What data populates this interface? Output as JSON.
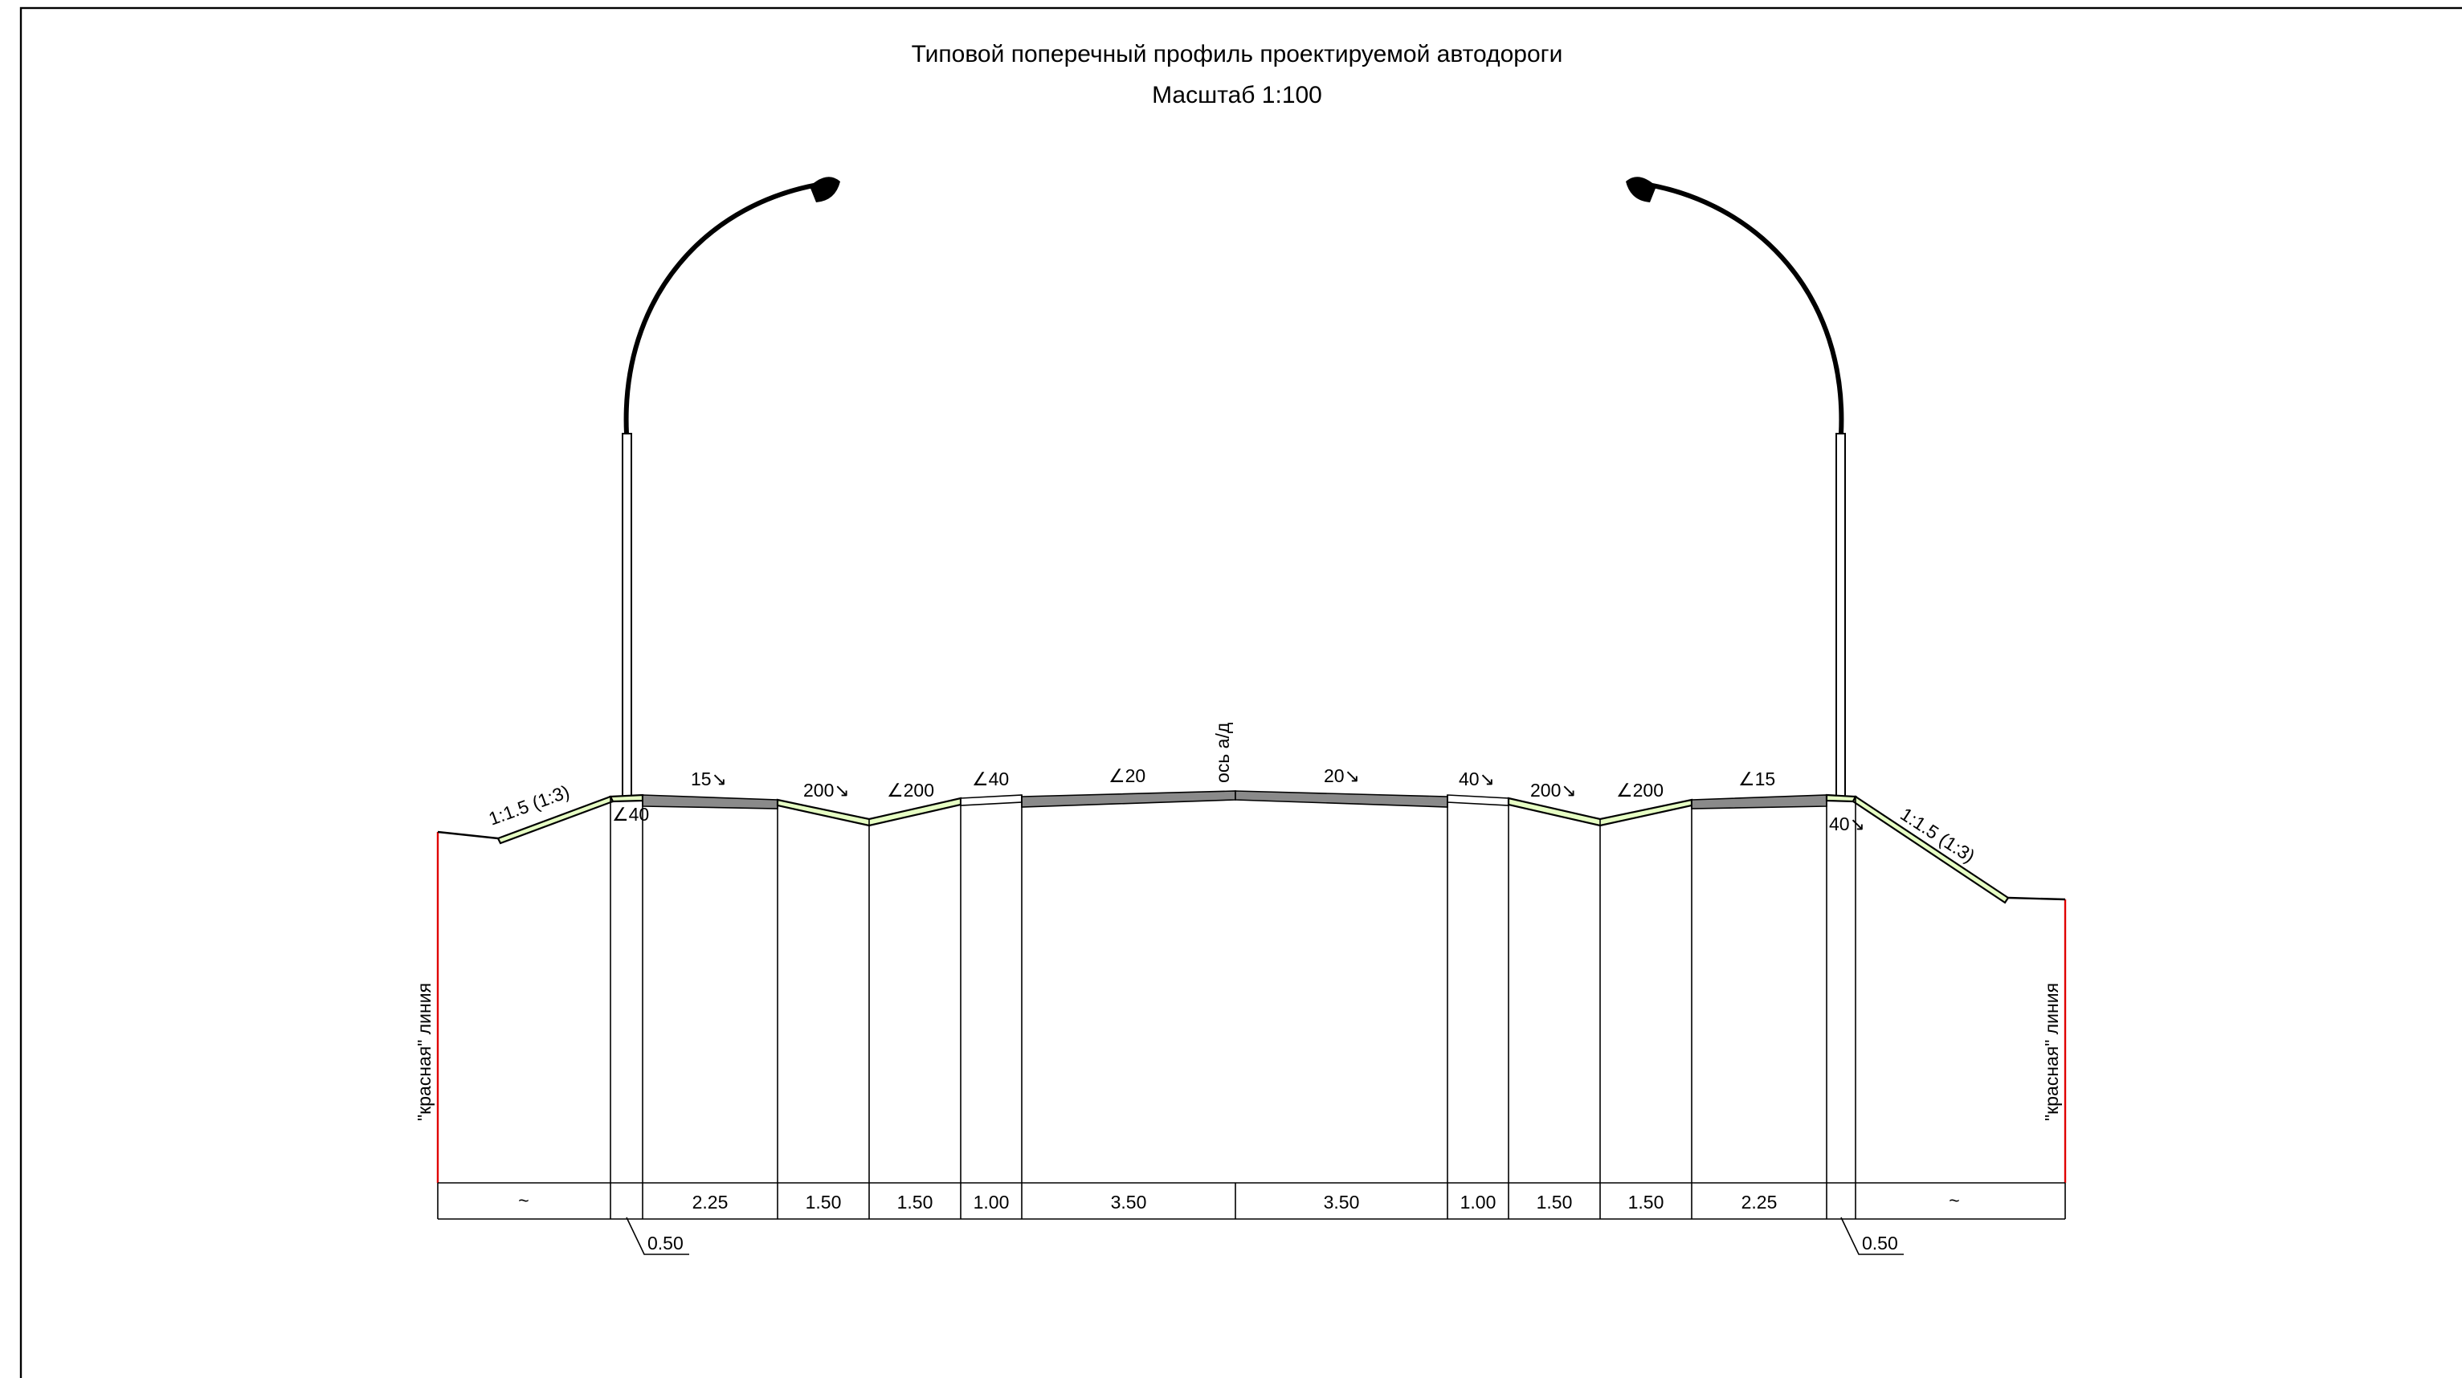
{
  "title": "Типовой поперечный профиль проектируемой автодороги",
  "scale": "Масштаб 1:100",
  "axis_label": "ось а/д",
  "red_line_label": "\"красная\" линия",
  "slope_labels": {
    "embankment_left": "1:1.5 (1:3)",
    "embankment_right": "1:1.5 (1:3)",
    "kerb_left": "40",
    "kerb_right": "40",
    "sidewalk_left": "15",
    "sidewalk_right": "15",
    "ditch_left_outer": "200",
    "ditch_left_inner": "200",
    "ditch_right_inner": "200",
    "ditch_right_outer": "200",
    "shoulder_left": "40",
    "shoulder_right": "40",
    "lane_left": "20",
    "lane_right": "20"
  },
  "dimensions": {
    "outer_left": "~",
    "sidewalk_left": "2.25",
    "ditch_left_1": "1.50",
    "ditch_left_2": "1.50",
    "shoulder_left": "1.00",
    "lane_left": "3.50",
    "lane_right": "3.50",
    "shoulder_right": "1.00",
    "ditch_right_1": "1.50",
    "ditch_right_2": "1.50",
    "sidewalk_right": "2.25",
    "outer_right": "~",
    "kerb_left_callout": "0.50",
    "kerb_right_callout": "0.50"
  },
  "colors": {
    "red_line": "#e00000",
    "grass": "#e6ffc4",
    "asphalt": "#8a8a8a"
  }
}
